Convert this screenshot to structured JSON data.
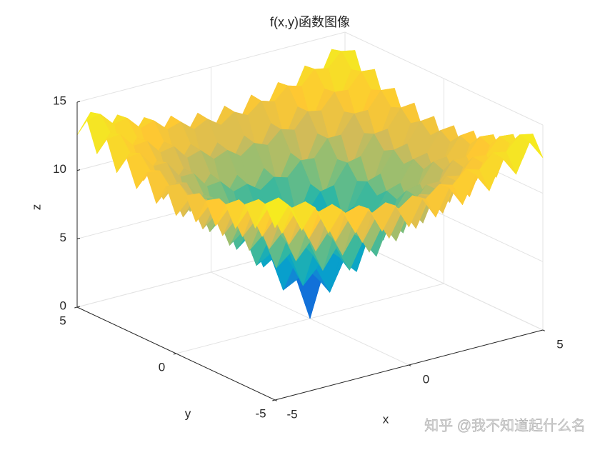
{
  "chart_data": {
    "type": "surface",
    "title": "f(x,y)函数图像",
    "xlabel": "x",
    "ylabel": "y",
    "zlabel": "z",
    "watermark": "知乎 @我不知道起什么名",
    "x": [
      -5,
      -4.5,
      -4,
      -3.5,
      -3,
      -2.5,
      -2,
      -1.5,
      -1,
      -0.5,
      0,
      0.5,
      1,
      1.5,
      2,
      2.5,
      3,
      3.5,
      4,
      4.5,
      5
    ],
    "y": [
      -5,
      -4.5,
      -4,
      -3.5,
      -3,
      -2.5,
      -2,
      -1.5,
      -1,
      -0.5,
      0,
      0.5,
      1,
      1.5,
      2,
      2.5,
      3,
      3.5,
      4,
      4.5,
      5
    ],
    "z": [
      [
        12.6,
        14.0,
        11.9,
        13.3,
        11.2,
        12.6,
        10.7,
        12.2,
        10.3,
        11.9,
        10.1,
        11.9,
        10.3,
        12.2,
        10.7,
        12.6,
        11.2,
        13.3,
        11.9,
        14.0,
        12.6
      ],
      [
        14.0,
        14.2,
        13.2,
        13.4,
        12.4,
        12.7,
        11.8,
        12.1,
        11.3,
        11.8,
        11.1,
        11.8,
        11.3,
        12.1,
        11.8,
        12.7,
        12.4,
        13.4,
        13.2,
        14.2,
        14.0
      ],
      [
        11.9,
        13.2,
        11.0,
        12.3,
        10.1,
        11.5,
        9.4,
        10.8,
        8.8,
        10.4,
        8.6,
        10.4,
        8.8,
        10.8,
        9.4,
        11.5,
        10.1,
        12.3,
        11.0,
        13.2,
        11.9
      ],
      [
        13.3,
        13.4,
        12.3,
        12.4,
        11.3,
        11.5,
        10.4,
        10.7,
        9.8,
        10.2,
        9.5,
        10.2,
        9.8,
        10.7,
        10.4,
        11.5,
        11.3,
        12.4,
        12.3,
        13.4,
        13.3
      ],
      [
        11.2,
        12.4,
        10.1,
        11.3,
        9.0,
        10.2,
        8.0,
        9.3,
        7.2,
        8.7,
        6.9,
        8.7,
        7.2,
        9.3,
        8.0,
        10.2,
        9.0,
        11.3,
        10.1,
        12.4,
        11.2
      ],
      [
        12.6,
        12.7,
        11.5,
        11.5,
        10.2,
        10.2,
        9.0,
        9.1,
        8.1,
        8.4,
        7.7,
        8.4,
        8.1,
        9.1,
        9.0,
        10.2,
        10.2,
        11.5,
        11.5,
        12.7,
        12.6
      ],
      [
        10.7,
        11.8,
        9.4,
        10.4,
        8.0,
        9.0,
        6.6,
        7.7,
        5.4,
        6.8,
        4.9,
        6.8,
        5.4,
        7.7,
        6.6,
        9.0,
        8.0,
        10.4,
        9.4,
        11.8,
        10.7
      ],
      [
        12.2,
        12.1,
        10.8,
        10.7,
        9.3,
        9.1,
        7.7,
        7.5,
        6.2,
        6.4,
        5.5,
        6.4,
        6.2,
        7.5,
        7.7,
        9.1,
        9.3,
        10.7,
        10.8,
        12.1,
        12.2
      ],
      [
        10.3,
        11.3,
        8.8,
        9.8,
        7.2,
        8.1,
        5.4,
        6.2,
        3.6,
        4.6,
        2.6,
        4.6,
        3.6,
        6.2,
        5.4,
        8.1,
        7.2,
        9.8,
        8.8,
        11.3,
        10.3
      ],
      [
        11.9,
        11.8,
        10.4,
        10.2,
        8.7,
        8.4,
        6.8,
        6.4,
        4.6,
        4.3,
        3.1,
        4.3,
        4.6,
        6.4,
        6.8,
        8.4,
        8.7,
        10.2,
        10.4,
        11.8,
        11.9
      ],
      [
        10.1,
        11.1,
        8.6,
        9.5,
        6.9,
        7.7,
        4.9,
        5.5,
        2.6,
        3.1,
        0,
        3.1,
        2.6,
        5.5,
        4.9,
        7.7,
        6.9,
        9.5,
        8.6,
        11.1,
        10.1
      ],
      [
        11.9,
        11.8,
        10.4,
        10.2,
        8.7,
        8.4,
        6.8,
        6.4,
        4.6,
        4.3,
        3.1,
        4.3,
        4.6,
        6.4,
        6.8,
        8.4,
        8.7,
        10.2,
        10.4,
        11.8,
        11.9
      ],
      [
        10.3,
        11.3,
        8.8,
        9.8,
        7.2,
        8.1,
        5.4,
        6.2,
        3.6,
        4.6,
        2.6,
        4.6,
        3.6,
        6.2,
        5.4,
        8.1,
        7.2,
        9.8,
        8.8,
        11.3,
        10.3
      ],
      [
        12.2,
        12.1,
        10.8,
        10.7,
        9.3,
        9.1,
        7.7,
        7.5,
        6.2,
        6.4,
        5.5,
        6.4,
        6.2,
        7.5,
        7.7,
        9.1,
        9.3,
        10.7,
        10.8,
        12.1,
        12.2
      ],
      [
        10.7,
        11.8,
        9.4,
        10.4,
        8.0,
        9.0,
        6.6,
        7.7,
        5.4,
        6.8,
        4.9,
        6.8,
        5.4,
        7.7,
        6.6,
        9.0,
        8.0,
        10.4,
        9.4,
        11.8,
        10.7
      ],
      [
        12.6,
        12.7,
        11.5,
        11.5,
        10.2,
        10.2,
        9.0,
        9.1,
        8.1,
        8.4,
        7.7,
        8.4,
        8.1,
        9.1,
        9.0,
        10.2,
        10.2,
        11.5,
        11.5,
        12.7,
        12.6
      ],
      [
        11.2,
        12.4,
        10.1,
        11.3,
        9.0,
        10.2,
        8.0,
        9.3,
        7.2,
        8.7,
        6.9,
        8.7,
        7.2,
        9.3,
        8.0,
        10.2,
        9.0,
        11.3,
        10.1,
        12.4,
        11.2
      ],
      [
        13.3,
        13.4,
        12.3,
        12.4,
        11.3,
        11.5,
        10.4,
        10.7,
        9.8,
        10.2,
        9.5,
        10.2,
        9.8,
        10.7,
        10.4,
        11.5,
        11.3,
        12.4,
        12.3,
        13.4,
        13.3
      ],
      [
        11.9,
        13.2,
        11.0,
        12.3,
        10.1,
        11.5,
        9.4,
        10.8,
        8.8,
        10.4,
        8.6,
        10.4,
        8.8,
        10.8,
        9.4,
        11.5,
        10.1,
        12.3,
        11.0,
        13.2,
        11.9
      ],
      [
        14.0,
        14.2,
        13.2,
        13.4,
        12.4,
        12.7,
        11.8,
        12.1,
        11.3,
        11.8,
        11.1,
        11.8,
        11.3,
        12.1,
        11.8,
        12.7,
        12.4,
        13.4,
        13.2,
        14.2,
        14.0
      ],
      [
        12.6,
        14.0,
        11.9,
        13.3,
        11.2,
        12.6,
        10.7,
        12.2,
        10.3,
        11.9,
        10.1,
        11.9,
        10.3,
        12.2,
        10.7,
        12.6,
        11.2,
        13.3,
        11.9,
        14.0,
        12.6
      ]
    ],
    "xlim": [
      -5,
      5
    ],
    "ylim": [
      -5,
      5
    ],
    "zlim": [
      0,
      15
    ],
    "xticks": [
      -5,
      0,
      5
    ],
    "yticks": [
      -5,
      0,
      5
    ],
    "zticks": [
      0,
      5,
      10,
      15
    ],
    "grid": true,
    "colormap": [
      "#352a87",
      "#0f5cdd",
      "#1481d6",
      "#06a4ca",
      "#2eb7a4",
      "#87bf77",
      "#d1bb59",
      "#fec832",
      "#f5e524",
      "#f9fb0e"
    ]
  }
}
